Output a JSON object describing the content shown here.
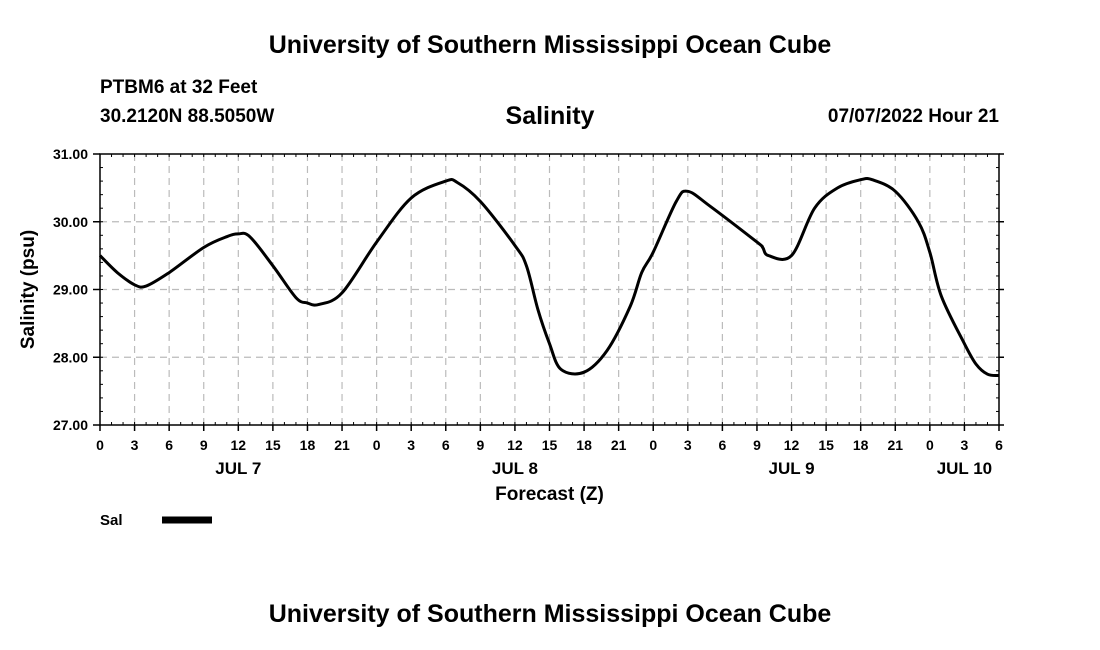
{
  "header": {
    "title": "University of Southern Mississippi Ocean Cube",
    "station": "PTBM6 at 32 Feet",
    "coords": "30.2120N  88.5050W",
    "variable": "Salinity",
    "datetime": "07/07/2022 Hour 21"
  },
  "footer": {
    "title": "University of Southern Mississippi Ocean Cube"
  },
  "chart_data": {
    "type": "line",
    "title": "Salinity",
    "xlabel": "Forecast (Z)",
    "ylabel": "Salinity (psu)",
    "ylim": [
      27.0,
      31.0
    ],
    "y_ticks": [
      "27.00",
      "28.00",
      "29.00",
      "30.00",
      "31.00"
    ],
    "xlim_hours": [
      0,
      78
    ],
    "x_tick_labels": [
      "0",
      "3",
      "6",
      "9",
      "12",
      "15",
      "18",
      "21",
      "0",
      "3",
      "6",
      "9",
      "12",
      "15",
      "18",
      "21",
      "0",
      "3",
      "6",
      "9",
      "12",
      "15",
      "18",
      "21",
      "0",
      "3",
      "6"
    ],
    "date_labels": [
      {
        "label": "JUL 7",
        "hour": 12
      },
      {
        "label": "JUL 8",
        "hour": 36
      },
      {
        "label": "JUL 9",
        "hour": 60
      },
      {
        "label": "JUL 10",
        "hour": 75
      }
    ],
    "grid": true,
    "legend": "bottom-left",
    "series": [
      {
        "name": "Sal",
        "color": "#000000",
        "x": [
          0,
          1.5,
          3,
          4,
          6,
          9,
          11,
          12,
          13,
          15,
          17,
          18,
          19,
          21,
          24,
          27,
          30,
          31,
          33,
          36,
          37,
          38,
          39,
          40,
          42,
          44,
          46,
          47,
          48,
          50,
          51,
          53,
          57,
          57.5,
          58,
          60,
          62,
          64,
          66,
          67,
          69,
          71,
          72,
          73,
          75,
          76,
          77,
          78
        ],
        "y": [
          29.5,
          29.25,
          29.07,
          29.05,
          29.25,
          29.62,
          29.78,
          29.82,
          29.78,
          29.35,
          28.88,
          28.8,
          28.78,
          28.95,
          29.7,
          30.35,
          30.6,
          30.58,
          30.3,
          29.65,
          29.35,
          28.7,
          28.2,
          27.82,
          27.78,
          28.1,
          28.75,
          29.25,
          29.55,
          30.3,
          30.45,
          30.22,
          29.7,
          29.62,
          29.5,
          29.5,
          30.2,
          30.5,
          30.62,
          30.62,
          30.45,
          30.0,
          29.55,
          28.9,
          28.2,
          27.9,
          27.75,
          27.73
        ]
      }
    ]
  }
}
